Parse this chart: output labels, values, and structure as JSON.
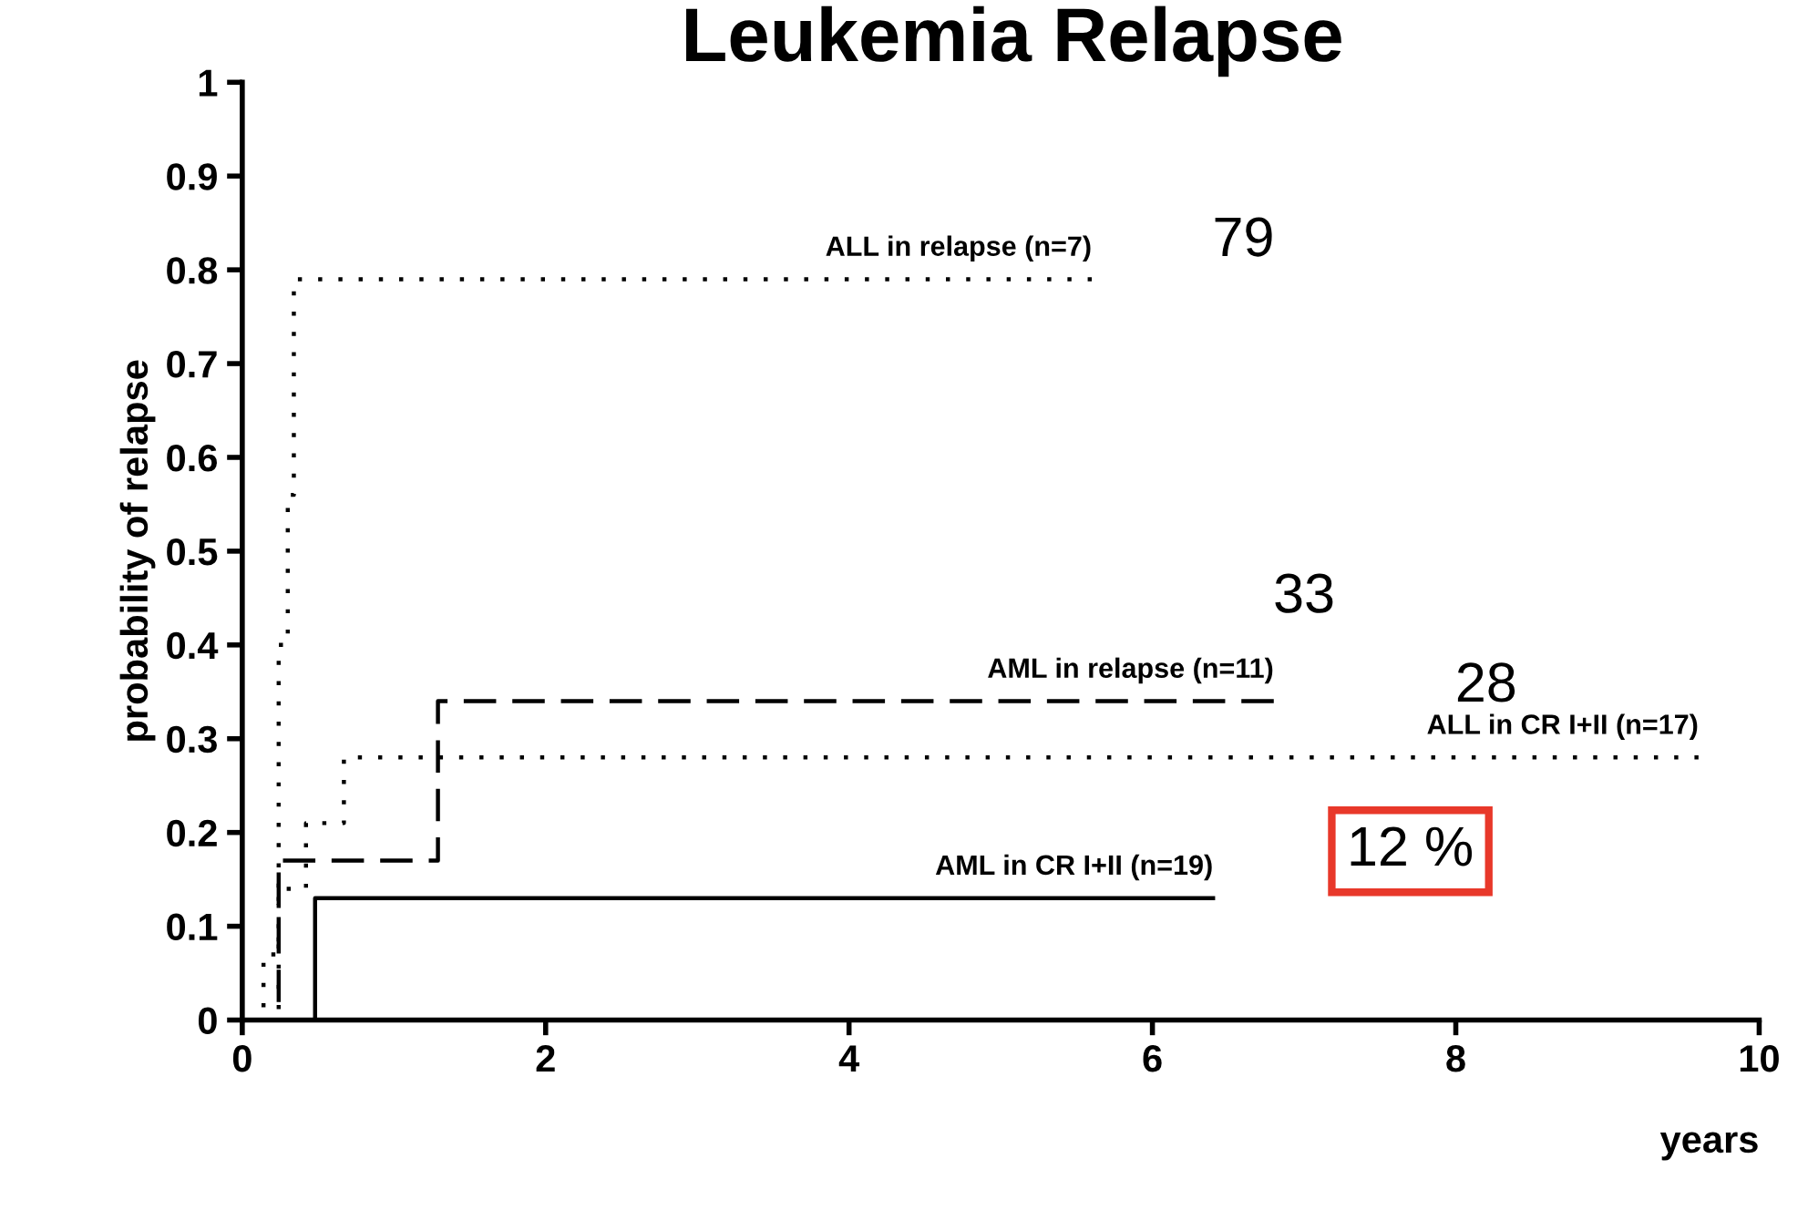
{
  "chart_data": {
    "type": "step",
    "title": "Leukemia Relapse",
    "xlabel": "years",
    "ylabel": "probability of relapse",
    "xlim": [
      0,
      10
    ],
    "xticks": [
      0,
      2,
      4,
      6,
      8,
      10
    ],
    "ylim": [
      0,
      1
    ],
    "yticks": [
      0,
      0.1,
      0.2,
      0.3,
      0.4,
      0.5,
      0.6,
      0.7,
      0.8,
      0.9,
      1
    ],
    "grid": false,
    "legend": false,
    "series": [
      {
        "name": "ALL in relapse (n=7)",
        "color": "#000000",
        "line_style": "dotted",
        "x": [
          0.24,
          0.24,
          0.3,
          0.34,
          5.6
        ],
        "values": [
          0,
          0.4,
          0.56,
          0.79,
          0.79
        ]
      },
      {
        "name": "AML in relapse (n=11)",
        "color": "#000000",
        "line_style": "dashed",
        "x": [
          0.24,
          0.24,
          1.29,
          6.8
        ],
        "values": [
          0,
          0.17,
          0.34,
          0.34
        ]
      },
      {
        "name": "ALL in CR I+II (n=17)",
        "color": "#000000",
        "line_style": "dotted",
        "x": [
          0.14,
          0.14,
          0.24,
          0.42,
          0.67,
          9.6
        ],
        "values": [
          0,
          0.07,
          0.14,
          0.21,
          0.28,
          0.28
        ]
      },
      {
        "name": "AML in CR I+II (n=19)",
        "color": "#000000",
        "line_style": "solid",
        "x": [
          0.48,
          0.48,
          6.4
        ],
        "values": [
          0,
          0.13,
          0.13
        ]
      }
    ],
    "annotations": [
      "79",
      "33",
      "28",
      "12 %"
    ]
  }
}
